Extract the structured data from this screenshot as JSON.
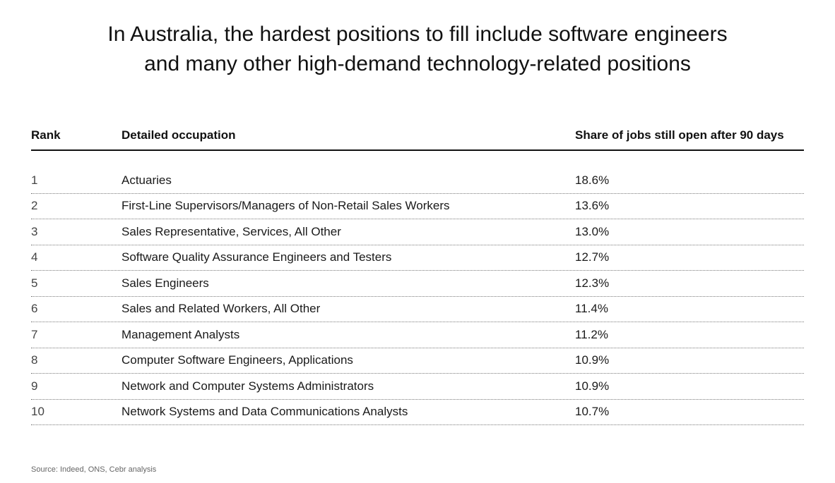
{
  "chart_data": {
    "type": "table",
    "title": "In Australia, the hardest positions to fill include software engineers and many other high-demand technology-related positions",
    "title_lines": [
      "In Australia, the hardest positions to fill include software engineers",
      "and many other high-demand technology-related positions"
    ],
    "columns": [
      "Rank",
      "Detailed occupation",
      "Share of jobs still open after 90 days"
    ],
    "rows": [
      {
        "rank": "1",
        "occupation": "Actuaries",
        "share": "18.6%"
      },
      {
        "rank": "2",
        "occupation": "First-Line Supervisors/Managers of Non-Retail Sales Workers",
        "share": "13.6%"
      },
      {
        "rank": "3",
        "occupation": "Sales Representative, Services, All Other",
        "share": "13.0%"
      },
      {
        "rank": "4",
        "occupation": "Software Quality Assurance Engineers and Testers",
        "share": "12.7%"
      },
      {
        "rank": "5",
        "occupation": "Sales Engineers",
        "share": "12.3%"
      },
      {
        "rank": "6",
        "occupation": "Sales and Related Workers, All Other",
        "share": "11.4%"
      },
      {
        "rank": "7",
        "occupation": "Management Analysts",
        "share": "11.2%"
      },
      {
        "rank": "8",
        "occupation": "Computer Software Engineers, Applications",
        "share": "10.9%"
      },
      {
        "rank": "9",
        "occupation": "Network and Computer Systems Administrators",
        "share": "10.9%"
      },
      {
        "rank": "10",
        "occupation": "Network Systems and Data Communications Analysts",
        "share": "10.7%"
      }
    ],
    "source": "Source:  Indeed, ONS, Cebr analysis"
  }
}
